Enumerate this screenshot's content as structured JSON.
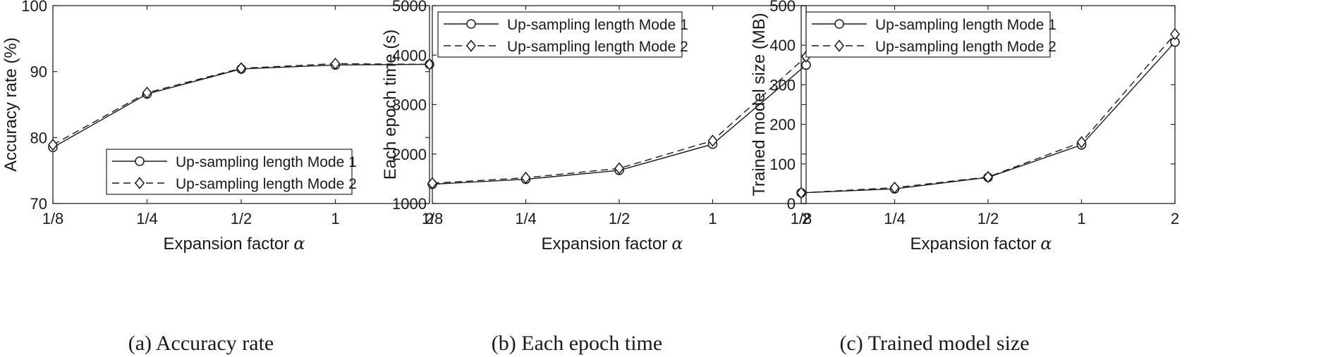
{
  "chart_data": [
    {
      "type": "line",
      "caption": "(a) Accuracy rate",
      "xlabel": "Expansion factor",
      "xlabel_symbol": "α",
      "ylabel": "Accuracy rate (%)",
      "categories": [
        "1/8",
        "1/4",
        "1/2",
        "1",
        "2"
      ],
      "ylim": [
        70,
        100
      ],
      "yticks": [
        70,
        80,
        90,
        100
      ],
      "legend": "bottom-right",
      "series": [
        {
          "name": "Up-sampling length Mode 1",
          "marker": "circle",
          "line": "solid",
          "values": [
            78.5,
            86.6,
            90.4,
            91.0,
            91.1
          ]
        },
        {
          "name": "Up-sampling length Mode 2",
          "marker": "diamond",
          "line": "dashed",
          "values": [
            78.9,
            86.8,
            90.5,
            91.2,
            91.1
          ]
        }
      ]
    },
    {
      "type": "line",
      "caption": "(b) Each epoch time",
      "xlabel": "Expansion factor",
      "xlabel_symbol": "α",
      "ylabel": "Each epoch time (s)",
      "categories": [
        "1/8",
        "1/4",
        "1/2",
        "1",
        "2"
      ],
      "ylim": [
        1000,
        5000
      ],
      "yticks": [
        1000,
        2000,
        3000,
        4000,
        5000
      ],
      "legend": "top-left",
      "series": [
        {
          "name": "Up-sampling length Mode 1",
          "marker": "circle",
          "line": "solid",
          "values": [
            1390,
            1490,
            1670,
            2200,
            3800
          ]
        },
        {
          "name": "Up-sampling length Mode 2",
          "marker": "diamond",
          "line": "dashed",
          "values": [
            1410,
            1520,
            1710,
            2270,
            3970
          ]
        }
      ]
    },
    {
      "type": "line",
      "caption": "(c) Trained model size",
      "xlabel": "Expansion factor",
      "xlabel_symbol": "α",
      "ylabel": "Trained model size (MB)",
      "categories": [
        "1/8",
        "1/4",
        "1/2",
        "1",
        "2"
      ],
      "ylim": [
        0,
        500
      ],
      "yticks": [
        0,
        100,
        200,
        300,
        400,
        500
      ],
      "legend": "top-left",
      "series": [
        {
          "name": "Up-sampling length Mode 1",
          "marker": "circle",
          "line": "solid",
          "values": [
            27,
            37,
            66,
            148,
            408
          ]
        },
        {
          "name": "Up-sampling length Mode 2",
          "marker": "diamond",
          "line": "dashed",
          "values": [
            27,
            40,
            67,
            155,
            428
          ]
        }
      ]
    }
  ]
}
